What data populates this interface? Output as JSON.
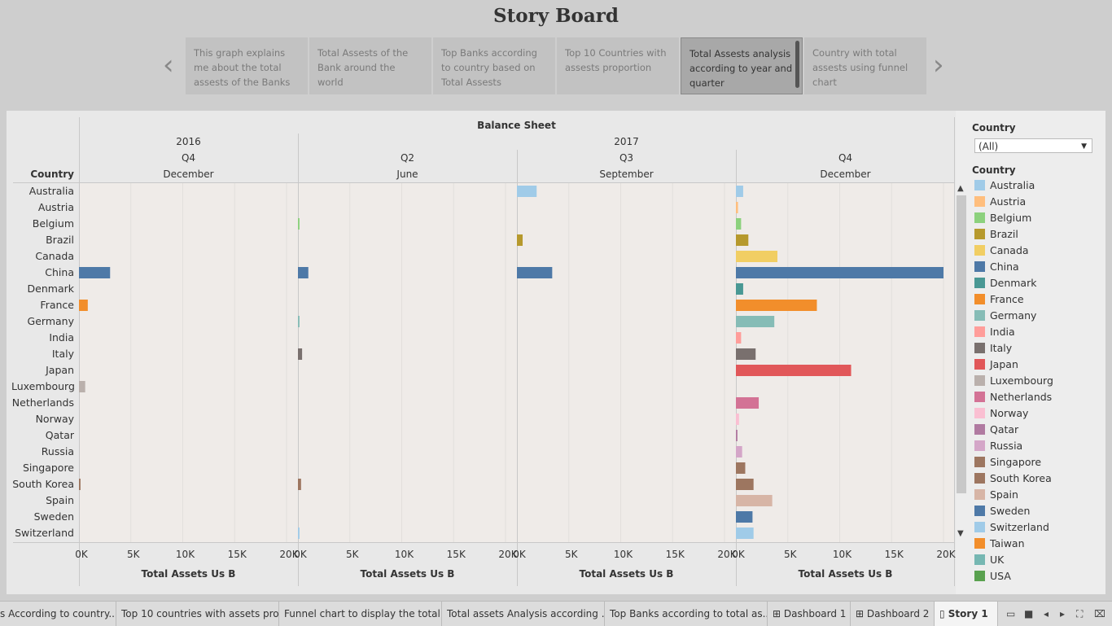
{
  "title": "Story Board",
  "story_points": [
    {
      "text": "This graph explains me about the total assests of the Banks",
      "active": false
    },
    {
      "text": "Total Assests of the Bank around the world",
      "active": false
    },
    {
      "text": "Top Banks according to country  based on Total Assests",
      "active": false
    },
    {
      "text": "Top 10 Countries with assests proportion",
      "active": false
    },
    {
      "text": "Total Assests analysis according to year and quarter",
      "active": true
    },
    {
      "text": "Country with total assests using funnel chart",
      "active": false
    }
  ],
  "nav": {
    "prev": "‹",
    "next": "›"
  },
  "chart_data": {
    "type": "bar",
    "title": "Balance Sheet",
    "row_header": "Country",
    "categories": [
      "Australia",
      "Austria",
      "Belgium",
      "Brazil",
      "Canada",
      "China",
      "Denmark",
      "France",
      "Germany",
      "India",
      "Italy",
      "Japan",
      "Luxembourg",
      "Netherlands",
      "Norway",
      "Qatar",
      "Russia",
      "Singapore",
      "South Korea",
      "Spain",
      "Sweden",
      "Switzerland"
    ],
    "years": [
      {
        "label": "2016"
      },
      {
        "label": "2017"
      }
    ],
    "panels": [
      {
        "year": "2016",
        "quarter": "Q4",
        "month": "December",
        "xlabel": "Total Assets Us B",
        "values": [
          0,
          0,
          0,
          0,
          0,
          3000,
          0,
          850,
          0,
          0,
          0,
          0,
          600,
          0,
          0,
          0,
          0,
          0,
          150,
          0,
          0,
          0
        ]
      },
      {
        "year": "2017",
        "quarter": "Q2",
        "month": "June",
        "xlabel": "Total Assets Us B",
        "values": [
          0,
          0,
          150,
          0,
          0,
          1000,
          0,
          0,
          150,
          0,
          400,
          0,
          0,
          0,
          0,
          0,
          0,
          0,
          300,
          0,
          0,
          150
        ]
      },
      {
        "year": "2017",
        "quarter": "Q3",
        "month": "September",
        "xlabel": "Total Assets Us B",
        "values": [
          1900,
          0,
          0,
          550,
          0,
          3400,
          0,
          0,
          0,
          0,
          0,
          0,
          0,
          0,
          0,
          0,
          0,
          0,
          0,
          0,
          0,
          0
        ]
      },
      {
        "year": "2017",
        "quarter": "Q4",
        "month": "December",
        "xlabel": "Total Assets Us B",
        "values": [
          700,
          200,
          500,
          1200,
          4000,
          20000,
          700,
          7800,
          3700,
          500,
          1900,
          11100,
          0,
          2200,
          300,
          150,
          600,
          900,
          1700,
          3500,
          1600,
          1700
        ]
      }
    ],
    "xlim": [
      0,
      20000
    ],
    "xticks": [
      "0K",
      "5K",
      "10K",
      "15K",
      "20K"
    ],
    "grid": true,
    "legend_position": "right"
  },
  "filter": {
    "title": "Country",
    "selected": "(All)"
  },
  "legend": {
    "title": "Country",
    "items": [
      {
        "name": "Australia",
        "color": "#a0cbe8"
      },
      {
        "name": "Austria",
        "color": "#ffbe7d"
      },
      {
        "name": "Belgium",
        "color": "#8cd17d"
      },
      {
        "name": "Brazil",
        "color": "#b6992d"
      },
      {
        "name": "Canada",
        "color": "#f1ce63"
      },
      {
        "name": "China",
        "color": "#4e79a7"
      },
      {
        "name": "Denmark",
        "color": "#499894"
      },
      {
        "name": "France",
        "color": "#f28e2b"
      },
      {
        "name": "Germany",
        "color": "#86bcb6"
      },
      {
        "name": "India",
        "color": "#ff9d9a"
      },
      {
        "name": "Italy",
        "color": "#79706e"
      },
      {
        "name": "Japan",
        "color": "#e15759"
      },
      {
        "name": "Luxembourg",
        "color": "#bab0ac"
      },
      {
        "name": "Netherlands",
        "color": "#d37295"
      },
      {
        "name": "Norway",
        "color": "#fabfd2"
      },
      {
        "name": "Qatar",
        "color": "#b07aa1"
      },
      {
        "name": "Russia",
        "color": "#d4a6c8"
      },
      {
        "name": "Singapore",
        "color": "#9d7660"
      },
      {
        "name": "South Korea",
        "color": "#9d7660"
      },
      {
        "name": "Spain",
        "color": "#d7b5a6"
      },
      {
        "name": "Sweden",
        "color": "#4e79a7"
      },
      {
        "name": "Switzerland",
        "color": "#a0cbe8"
      },
      {
        "name": "Taiwan",
        "color": "#f28e2b"
      },
      {
        "name": "UK",
        "color": "#76b7b2"
      },
      {
        "name": "USA",
        "color": "#59a14f"
      }
    ]
  },
  "tabs": [
    {
      "label": "s According to country..."
    },
    {
      "label": "Top 10 countries with assets pro..."
    },
    {
      "label": "Funnel chart to display the total ..."
    },
    {
      "label": "Total assets Analysis according ..."
    },
    {
      "label": "Top Banks according to total as..."
    },
    {
      "label": "Dashboard 1",
      "icon": "grid-icon"
    },
    {
      "label": "Dashboard 2",
      "icon": "grid-icon"
    },
    {
      "label": "Story 1",
      "icon": "book-icon",
      "active": true
    }
  ]
}
